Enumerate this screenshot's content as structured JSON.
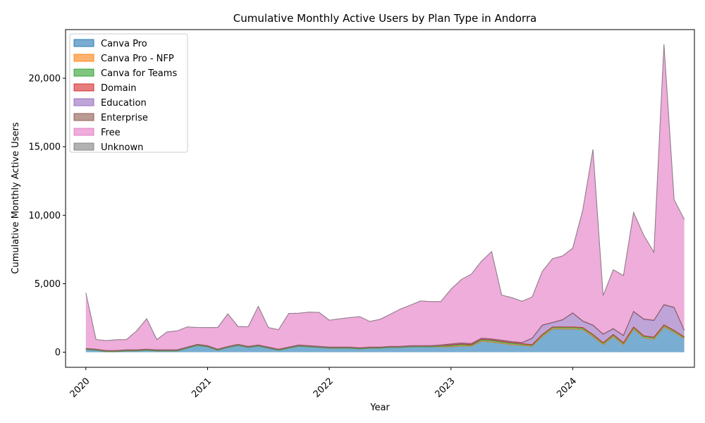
{
  "chart_data": {
    "type": "area",
    "stacked": true,
    "title": "Cumulative Monthly Active Users by Plan Type in Andorra",
    "xlabel": "Year",
    "ylabel": "Cumulative Monthly Active Users",
    "x_tick_labels": [
      "2020",
      "2021",
      "2022",
      "2023",
      "2024"
    ],
    "y_tick_labels": [
      "0",
      "5,000",
      "10,000",
      "15,000",
      "20,000"
    ],
    "y_ticks": [
      0,
      5000,
      10000,
      15000,
      20000
    ],
    "ylim": [
      -1100,
      23550
    ],
    "xlim": [
      "2019-11",
      "2025-01"
    ],
    "grid": false,
    "legend_position": "top-left",
    "x": [
      "2020-01",
      "2020-02",
      "2020-03",
      "2020-04",
      "2020-05",
      "2020-06",
      "2020-07",
      "2020-08",
      "2020-09",
      "2020-10",
      "2020-11",
      "2020-12",
      "2021-01",
      "2021-02",
      "2021-03",
      "2021-04",
      "2021-05",
      "2021-06",
      "2021-07",
      "2021-08",
      "2021-09",
      "2021-10",
      "2021-11",
      "2021-12",
      "2022-01",
      "2022-02",
      "2022-03",
      "2022-04",
      "2022-05",
      "2022-06",
      "2022-07",
      "2022-08",
      "2022-09",
      "2022-10",
      "2022-11",
      "2022-12",
      "2023-01",
      "2023-02",
      "2023-03",
      "2023-04",
      "2023-05",
      "2023-06",
      "2023-07",
      "2023-08",
      "2023-09",
      "2023-10",
      "2023-11",
      "2023-12",
      "2024-01",
      "2024-02",
      "2024-03",
      "2024-04",
      "2024-05",
      "2024-06",
      "2024-07",
      "2024-08",
      "2024-09",
      "2024-10",
      "2024-11",
      "2024-12"
    ],
    "series": [
      {
        "name": "Canva Pro",
        "color": "#1f77b4",
        "values": [
          200,
          150,
          50,
          50,
          100,
          100,
          150,
          100,
          100,
          100,
          300,
          500,
          400,
          150,
          350,
          500,
          350,
          450,
          300,
          150,
          300,
          450,
          400,
          350,
          300,
          300,
          300,
          250,
          300,
          300,
          350,
          350,
          400,
          400,
          400,
          400,
          400,
          450,
          450,
          800,
          750,
          650,
          550,
          500,
          450,
          1150,
          1700,
          1700,
          1700,
          1650,
          1150,
          550,
          1150,
          550,
          1700,
          1050,
          950,
          1850,
          1450,
          1000
        ]
      },
      {
        "name": "Canva Pro - NFP",
        "color": "#ff7f0e",
        "values": [
          0,
          0,
          0,
          0,
          0,
          0,
          0,
          0,
          0,
          0,
          0,
          0,
          0,
          0,
          0,
          0,
          0,
          0,
          0,
          0,
          0,
          0,
          0,
          0,
          0,
          0,
          0,
          0,
          0,
          0,
          0,
          0,
          0,
          0,
          0,
          0,
          0,
          0,
          0,
          0,
          0,
          0,
          0,
          0,
          0,
          0,
          0,
          0,
          0,
          0,
          0,
          0,
          0,
          0,
          0,
          0,
          0,
          0,
          0,
          0
        ]
      },
      {
        "name": "Canva for Teams",
        "color": "#2ca02c",
        "values": [
          0,
          0,
          0,
          0,
          0,
          0,
          0,
          0,
          0,
          0,
          0,
          0,
          0,
          0,
          0,
          0,
          0,
          0,
          0,
          0,
          0,
          0,
          0,
          0,
          0,
          0,
          0,
          0,
          0,
          0,
          0,
          0,
          0,
          0,
          0,
          50,
          80,
          100,
          60,
          100,
          100,
          100,
          100,
          80,
          50,
          100,
          100,
          100,
          100,
          100,
          100,
          100,
          100,
          100,
          100,
          100,
          100,
          100,
          100,
          80
        ]
      },
      {
        "name": "Domain",
        "color": "#d62728",
        "values": [
          50,
          50,
          50,
          50,
          50,
          50,
          50,
          50,
          50,
          50,
          50,
          50,
          50,
          50,
          50,
          50,
          50,
          50,
          50,
          50,
          50,
          50,
          50,
          50,
          50,
          50,
          50,
          50,
          50,
          50,
          50,
          50,
          50,
          50,
          50,
          50,
          50,
          50,
          50,
          50,
          50,
          50,
          50,
          50,
          50,
          50,
          50,
          50,
          50,
          50,
          50,
          50,
          50,
          50,
          50,
          50,
          50,
          50,
          50,
          50
        ]
      },
      {
        "name": "Education",
        "color": "#9467bd",
        "values": [
          0,
          0,
          0,
          0,
          0,
          0,
          0,
          0,
          0,
          0,
          0,
          0,
          0,
          0,
          0,
          0,
          0,
          0,
          0,
          0,
          0,
          0,
          0,
          0,
          0,
          0,
          0,
          0,
          0,
          0,
          0,
          0,
          0,
          0,
          0,
          0,
          50,
          50,
          50,
          50,
          50,
          50,
          50,
          50,
          450,
          650,
          300,
          500,
          1000,
          450,
          650,
          600,
          400,
          500,
          1100,
          1200,
          1200,
          1450,
          1650,
          450
        ]
      },
      {
        "name": "Enterprise",
        "color": "#8c564b",
        "values": [
          30,
          30,
          30,
          30,
          30,
          30,
          30,
          30,
          30,
          30,
          30,
          30,
          30,
          30,
          30,
          30,
          30,
          30,
          30,
          30,
          30,
          30,
          30,
          30,
          30,
          30,
          30,
          30,
          30,
          30,
          30,
          30,
          30,
          30,
          30,
          30,
          30,
          30,
          30,
          30,
          30,
          30,
          30,
          30,
          30,
          30,
          30,
          30,
          30,
          30,
          30,
          30,
          30,
          30,
          30,
          30,
          30,
          30,
          30,
          30
        ]
      },
      {
        "name": "Free",
        "color": "#e377c2",
        "values": [
          4060,
          700,
          720,
          780,
          750,
          1370,
          2220,
          740,
          1300,
          1380,
          1470,
          1230,
          1320,
          1570,
          2370,
          1300,
          1430,
          2820,
          1420,
          1420,
          2450,
          2320,
          2450,
          2480,
          1960,
          2060,
          2150,
          2270,
          1870,
          2020,
          2340,
          2720,
          2960,
          3260,
          3220,
          3170,
          3990,
          4620,
          5060,
          5610,
          6370,
          3290,
          3210,
          3010,
          3000,
          3920,
          4650,
          4650,
          4720,
          8120,
          12820,
          2800,
          4290,
          4370,
          7220,
          6110,
          4970,
          18990,
          7850,
          8090
        ]
      },
      {
        "name": "Unknown",
        "color": "#7f7f7f",
        "values": [
          0,
          0,
          0,
          0,
          0,
          0,
          0,
          0,
          0,
          0,
          0,
          0,
          0,
          0,
          0,
          0,
          0,
          0,
          0,
          0,
          0,
          0,
          0,
          0,
          0,
          0,
          0,
          0,
          0,
          0,
          0,
          0,
          0,
          0,
          0,
          0,
          0,
          0,
          0,
          0,
          0,
          0,
          0,
          0,
          0,
          0,
          0,
          0,
          0,
          0,
          0,
          0,
          0,
          0,
          0,
          0,
          0,
          0,
          0,
          0
        ]
      }
    ]
  }
}
